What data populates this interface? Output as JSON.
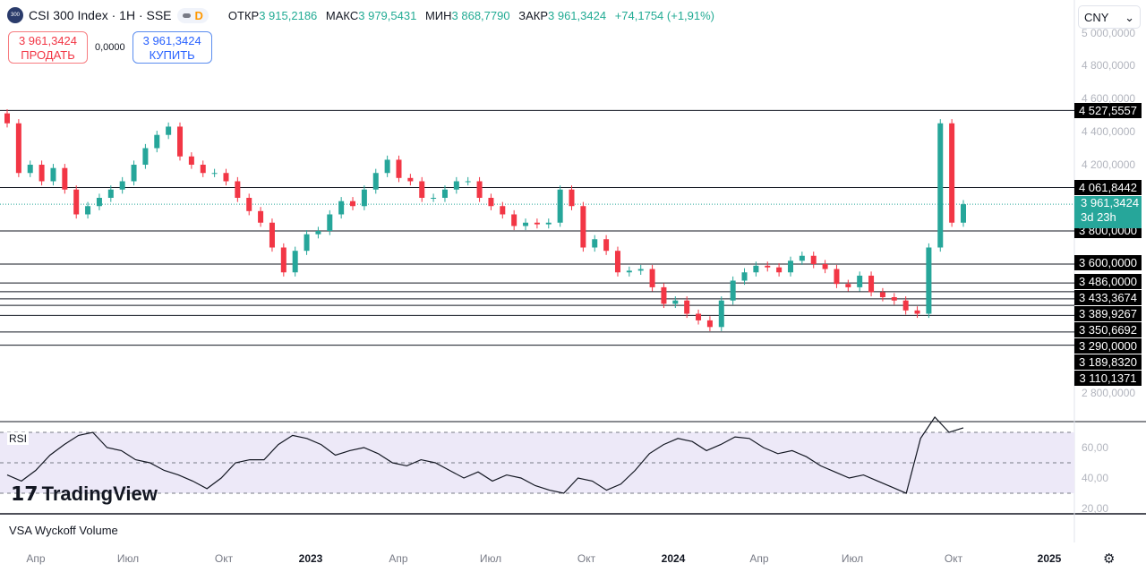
{
  "header": {
    "symbol_logo": "300",
    "title": "CSI 300 Index · 1H · SSE",
    "badge": "D",
    "ohlc": [
      {
        "k": "ОТКР",
        "v": "3 915,2186"
      },
      {
        "k": "МАКС",
        "v": "3 979,5431"
      },
      {
        "k": "МИН",
        "v": "3 868,7790"
      },
      {
        "k": "ЗАКР",
        "v": "3 961,3424"
      }
    ],
    "change": "+74,1754 (+1,91%)"
  },
  "trade": {
    "sell_price": "3 961,3424",
    "sell_label": "ПРОДАТЬ",
    "spread": "0,0000",
    "buy_price": "3 961,3424",
    "buy_label": "КУПИТЬ"
  },
  "currency": "CNY",
  "price_axis": [
    "5 000,0000",
    "4 800,0000",
    "4 600,0000",
    "4 400,0000",
    "4 200,0000",
    "2 800,0000"
  ],
  "levels": [
    {
      "price": 4527.5557,
      "label": "4 527,5557"
    },
    {
      "price": 4061.8442,
      "label": "4 061,8442"
    },
    {
      "price": 3800,
      "label": "3 800,0000"
    },
    {
      "price": 3600,
      "label": "3 600,0000"
    },
    {
      "price": 3486,
      "label": "3 486,0000"
    },
    {
      "price": 3433.3674,
      "label": "3 433,3674"
    },
    {
      "price": 3389.9267,
      "label": "3 389,9267"
    },
    {
      "price": 3350.6692,
      "label": "3 350,6692"
    },
    {
      "price": 3290,
      "label": "3 290,0000"
    },
    {
      "price": 3189.832,
      "label": "3 189,8320"
    },
    {
      "price": 3110.1371,
      "label": "3 110,1371"
    }
  ],
  "current": {
    "price": "3 961,3424",
    "countdown": "3d 23h",
    "color": "#26a69a"
  },
  "colors": {
    "up": "#26a69a",
    "down": "#f23645",
    "rsi_band": "#ede9f8"
  },
  "chart_data": {
    "type": "candlestick",
    "closes": [
      4450,
      4150,
      4200,
      4100,
      4180,
      4050,
      3900,
      3950,
      4000,
      4050,
      4100,
      4200,
      4300,
      4380,
      4430,
      4250,
      4200,
      4150,
      4150,
      4100,
      4000,
      3920,
      3850,
      3700,
      3550,
      3680,
      3780,
      3800,
      3900,
      3980,
      3950,
      4050,
      4150,
      4230,
      4120,
      4100,
      4000,
      4000,
      4050,
      4100,
      4100,
      4000,
      3950,
      3900,
      3830,
      3850,
      3840,
      3850,
      4050,
      3950,
      3700,
      3750,
      3680,
      3550,
      3560,
      3570,
      3460,
      3360,
      3380,
      3300,
      3260,
      3220,
      3380,
      3500,
      3550,
      3590,
      3580,
      3550,
      3620,
      3650,
      3600,
      3570,
      3480,
      3460,
      3530,
      3430,
      3400,
      3380,
      3320,
      3300,
      3700,
      4450,
      3850,
      3961.34
    ],
    "rsi": {
      "label": "RSI",
      "values": [
        42,
        38,
        45,
        55,
        62,
        68,
        70,
        60,
        58,
        52,
        50,
        45,
        42,
        38,
        33,
        40,
        50,
        52,
        52,
        62,
        68,
        66,
        62,
        55,
        58,
        60,
        56,
        50,
        48,
        52,
        50,
        45,
        40,
        44,
        38,
        42,
        40,
        35,
        32,
        30,
        40,
        38,
        32,
        36,
        45,
        56,
        62,
        66,
        64,
        58,
        62,
        67,
        66,
        60,
        56,
        58,
        54,
        48,
        44,
        40,
        42,
        38,
        34,
        30,
        66,
        80,
        70,
        73
      ],
      "ticks": [
        "60,00",
        "40,00",
        "20,00"
      ]
    },
    "time_labels": [
      {
        "t": "Апр",
        "b": false
      },
      {
        "t": "Июл",
        "b": false
      },
      {
        "t": "Окт",
        "b": false
      },
      {
        "t": "2023",
        "b": true
      },
      {
        "t": "Апр",
        "b": false
      },
      {
        "t": "Июл",
        "b": false
      },
      {
        "t": "Окт",
        "b": false
      },
      {
        "t": "2024",
        "b": true
      },
      {
        "t": "Апр",
        "b": false
      },
      {
        "t": "Июл",
        "b": false
      },
      {
        "t": "Окт",
        "b": false
      },
      {
        "t": "2025",
        "b": true
      }
    ]
  },
  "brand": "TradingView",
  "indicator2": "VSA Wyckoff Volume"
}
